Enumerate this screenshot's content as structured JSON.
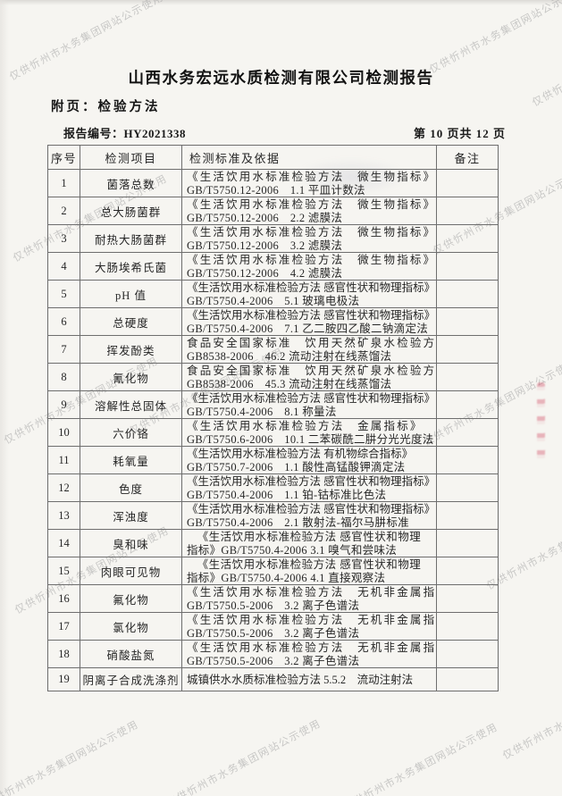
{
  "watermark": {
    "text": "仅供忻州市水务集团网站公示使用",
    "color": "#a9a9a9"
  },
  "header": {
    "title": "山西水务宏远水质检测有限公司检测报告",
    "subtitle": "附页：检验方法",
    "report_no_label": "报告编号：",
    "report_no": "HY2021338",
    "page_info": "第 10 页共 12 页"
  },
  "table": {
    "columns": [
      "序号",
      "检测项目",
      "检测标准及依据",
      "备注"
    ],
    "rows": [
      {
        "no": "1",
        "item": "菌落总数",
        "line1": "《生活饮用水标准检验方法　微生物指标》",
        "line2": "GB/T5750.12-2006　1.1 平皿计数法",
        "justify1": true,
        "remark": ""
      },
      {
        "no": "2",
        "item": "总大肠菌群",
        "line1": "《生活饮用水标准检验方法　微生物指标》",
        "line2": "GB/T5750.12-2006　2.2 滤膜法",
        "justify1": true,
        "remark": ""
      },
      {
        "no": "3",
        "item": "耐热大肠菌群",
        "line1": "《生活饮用水标准检验方法　微生物指标》",
        "line2": "GB/T5750.12-2006　3.2 滤膜法",
        "justify1": true,
        "remark": ""
      },
      {
        "no": "4",
        "item": "大肠埃希氏菌",
        "line1": "《生活饮用水标准检验方法　微生物指标》",
        "line2": "GB/T5750.12-2006　4.2 滤膜法",
        "justify1": true,
        "remark": ""
      },
      {
        "no": "5",
        "item": "pH 值",
        "line1": "《生活饮用水标准检验方法 感官性状和物理指标》",
        "line2": "GB/T5750.4-2006　5.1 玻璃电极法",
        "remark": ""
      },
      {
        "no": "6",
        "item": "总硬度",
        "line1": "《生活饮用水标准检验方法 感官性状和物理指标》",
        "line2": "GB/T5750.4-2006　7.1 乙二胺四乙酸二钠滴定法",
        "remark": ""
      },
      {
        "no": "7",
        "item": "挥发酚类",
        "line1": "食品安全国家标准　饮用天然矿泉水检验方法",
        "line2": "GB8538-2006　46.2 流动注射在线蒸馏法",
        "justify1": true,
        "remark": ""
      },
      {
        "no": "8",
        "item": "氰化物",
        "line1": "食品安全国家标准　饮用天然矿泉水检验方法",
        "line2": "GB8538-2006　45.3 流动注射在线蒸馏法",
        "justify1": true,
        "remark": ""
      },
      {
        "no": "9",
        "item": "溶解性总固体",
        "line1": "《生活饮用水标准检验方法 感官性状和物理指标》",
        "line2": "GB/T5750.4-2006　8.1 称量法",
        "remark": ""
      },
      {
        "no": "10",
        "item": "六价铬",
        "line1": "《生活饮用水标准检验方法　金属指标》",
        "line2": "GB/T5750.6-2006　10.1 二苯碳酰二肼分光光度法",
        "justify1": true,
        "remark": ""
      },
      {
        "no": "11",
        "item": "耗氧量",
        "line1": "《生活饮用水标准检验方法 有机物综合指标》",
        "line2": "GB/T5750.7-2006　1.1 酸性高锰酸钾滴定法",
        "remark": ""
      },
      {
        "no": "12",
        "item": "色度",
        "line1": "《生活饮用水标准检验方法 感官性状和物理指标》",
        "line2": "GB/T5750.4-2006　1.1 铂-钴标准比色法",
        "remark": ""
      },
      {
        "no": "13",
        "item": "浑浊度",
        "line1": "《生活饮用水标准检验方法 感官性状和物理指标》",
        "line2": "GB/T5750.4-2006　2.1 散射法-福尔马肼标准",
        "remark": ""
      },
      {
        "no": "14",
        "item": "臭和味",
        "line1": "《生活饮用水标准检验方法 感官性状和物理",
        "line2": "指标》GB/T5750.4-2006 3.1 嗅气和尝味法",
        "center1": true,
        "remark": ""
      },
      {
        "no": "15",
        "item": "肉眼可见物",
        "line1": "《生活饮用水标准检验方法 感官性状和物理",
        "line2": "指标》GB/T5750.4-2006 4.1 直接观察法",
        "center1": true,
        "remark": ""
      },
      {
        "no": "16",
        "item": "氟化物",
        "line1": "《生活饮用水标准检验方法　无机非金属指标》",
        "line2": "GB/T5750.5-2006　3.2 离子色谱法",
        "justify1": true,
        "remark": ""
      },
      {
        "no": "17",
        "item": "氯化物",
        "line1": "《生活饮用水标准检验方法　无机非金属指标》",
        "line2": "GB/T5750.5-2006　3.2 离子色谱法",
        "justify1": true,
        "remark": ""
      },
      {
        "no": "18",
        "item": "硝酸盐氮",
        "line1": "《生活饮用水标准检验方法　无机非金属指标》",
        "line2": "GB/T5750.5-2006　3.2 离子色谱法",
        "justify1": true,
        "remark": ""
      },
      {
        "no": "19",
        "item": "阴离子合成洗涤剂",
        "line1": "城镇供水水质标准检验方法 5.5.2　流动注射法",
        "line2": "",
        "remark": ""
      }
    ]
  },
  "colors": {
    "paper": "#f6f5f1",
    "table_border": "#6e6e6e",
    "text": "#262626",
    "watermark": "#a9a9a9",
    "red_mark": "#d04660"
  }
}
